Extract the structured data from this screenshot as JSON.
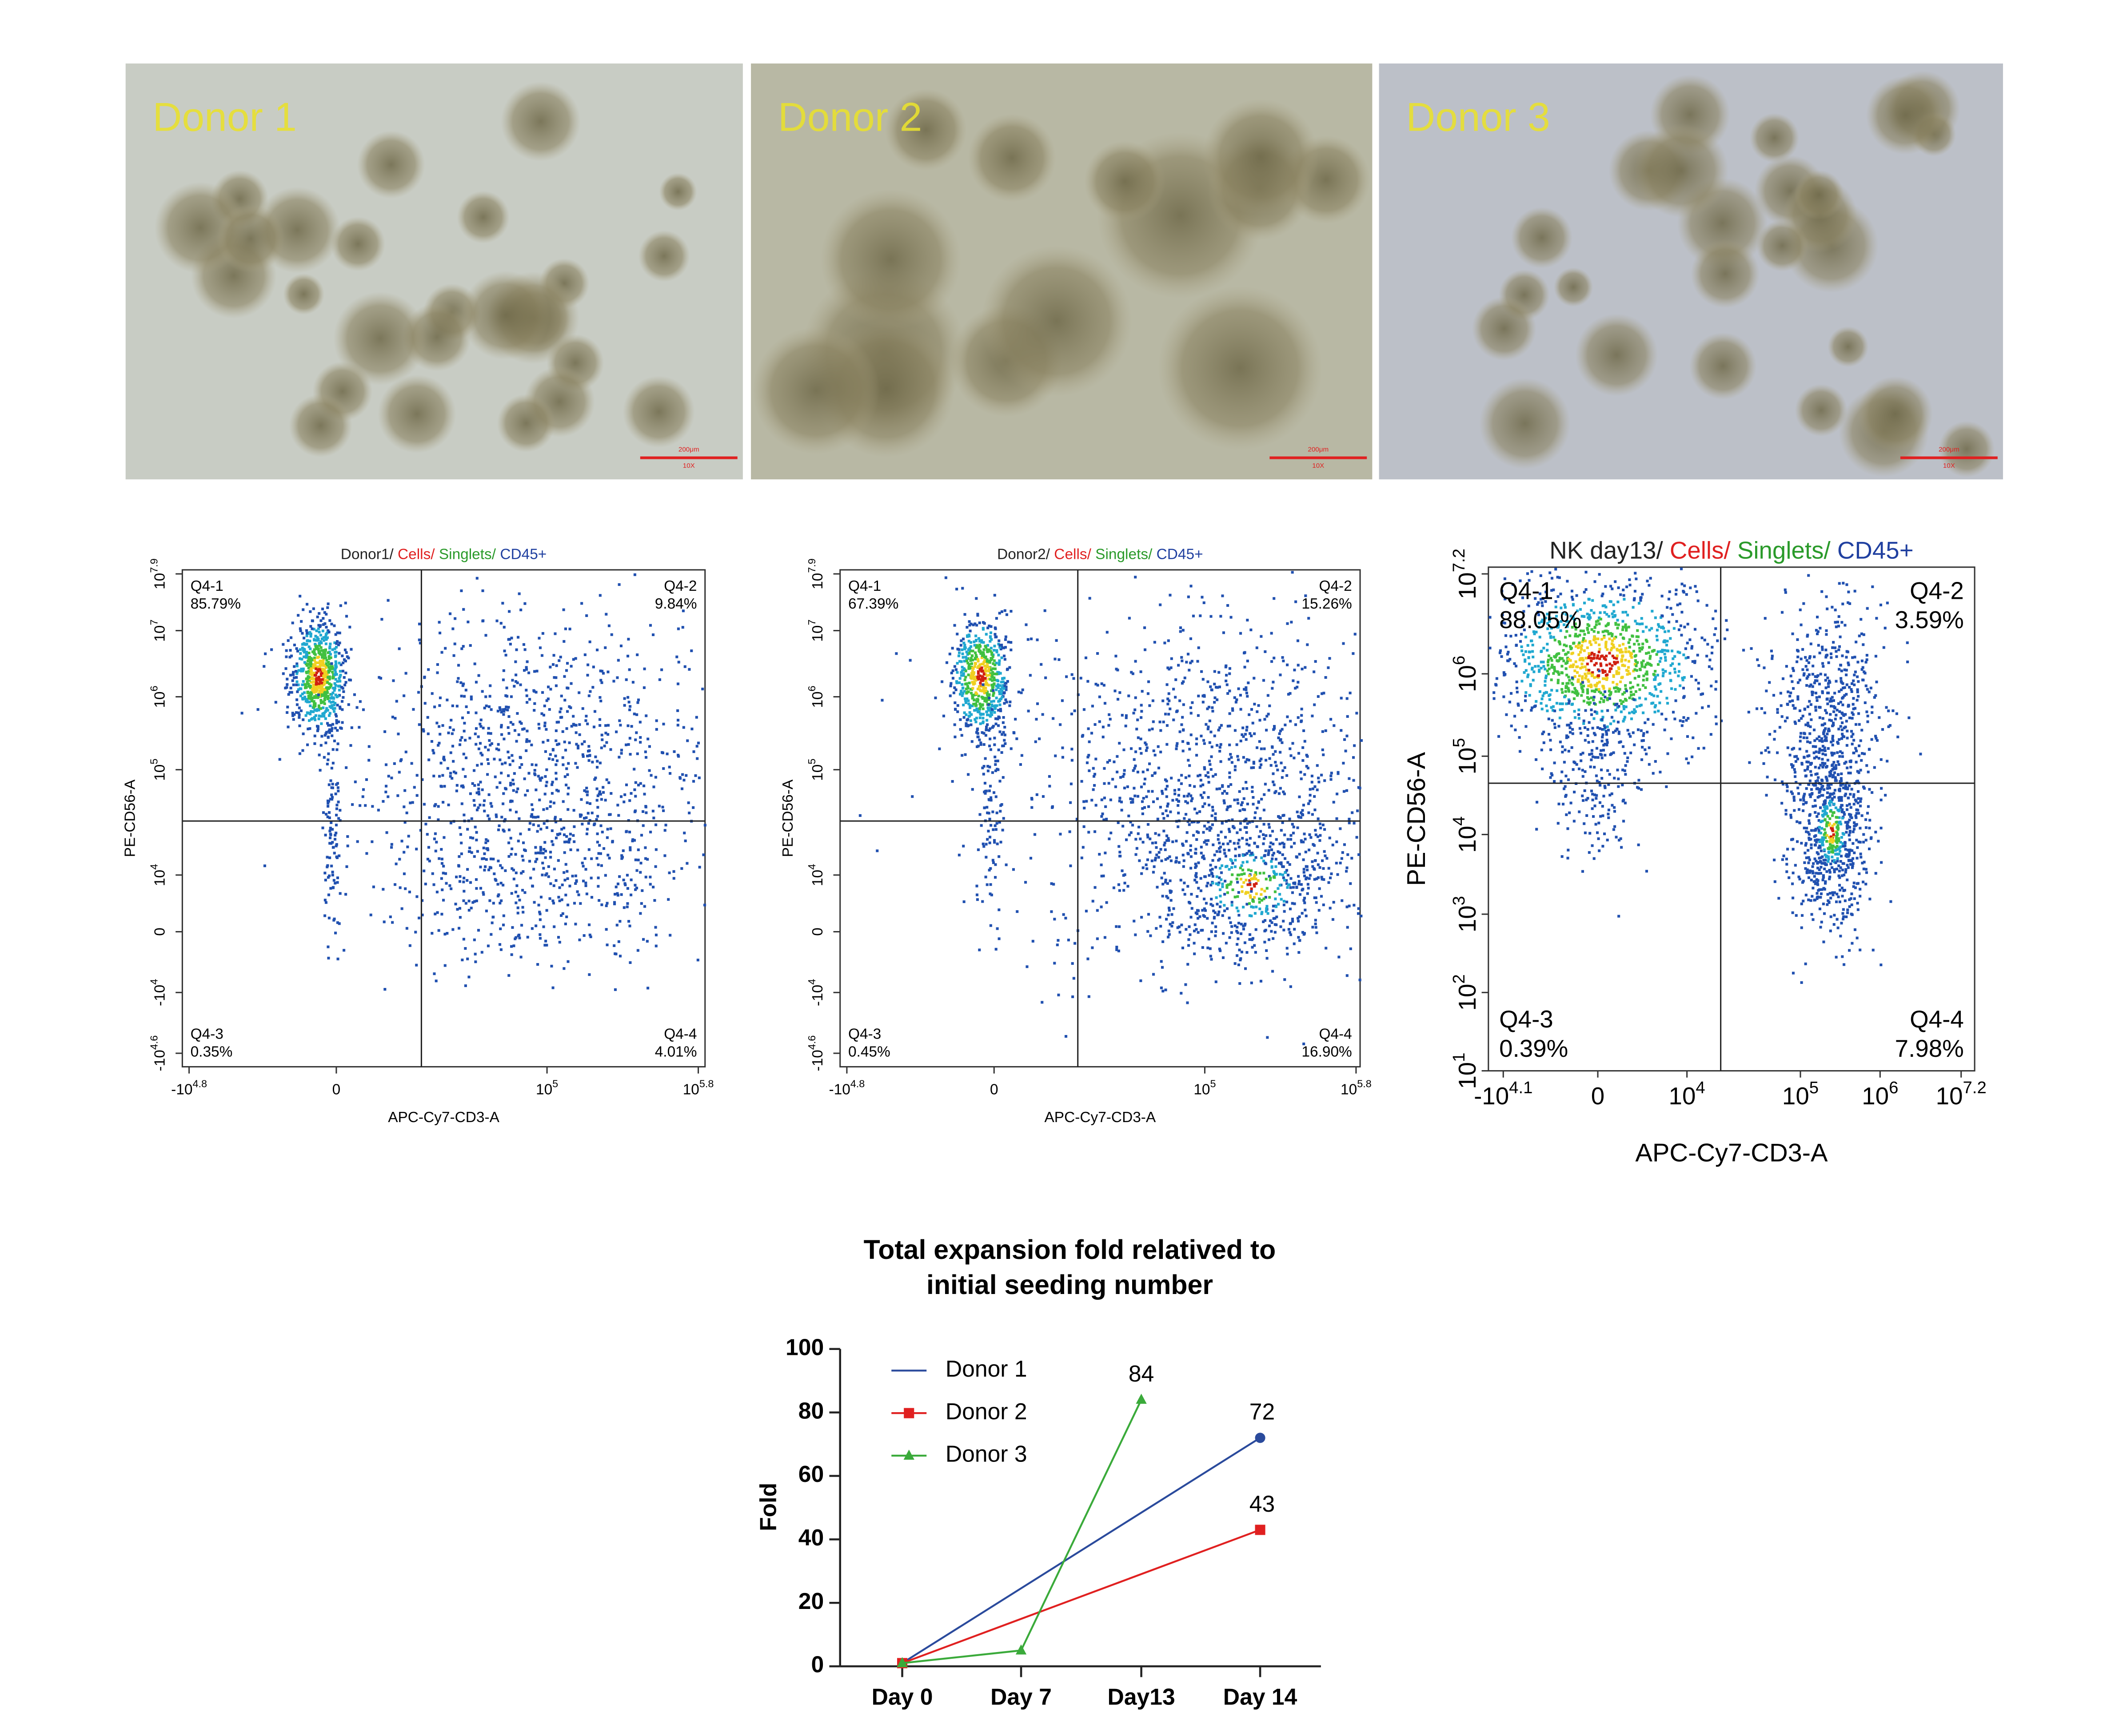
{
  "micrographs": [
    {
      "label": "Donor 1",
      "scale_bar": "200μm",
      "magnification": "10X"
    },
    {
      "label": "Donor 2",
      "scale_bar": "200μm",
      "magnification": "10X"
    },
    {
      "label": "Donor 3",
      "scale_bar": "200μm",
      "magnification": "10X"
    }
  ],
  "chart_data": [
    {
      "type": "flow",
      "title_parts": [
        {
          "text": "Donor1/",
          "color": "#222222"
        },
        {
          "text": " Cells/",
          "color": "#e02020"
        },
        {
          "text": " Singlets/",
          "color": "#2a9a2a"
        },
        {
          "text": " CD45+",
          "color": "#2040a0"
        }
      ],
      "xlabel": "APC-Cy7-CD3-A",
      "ylabel": "PE-CD56-A",
      "xticks": [
        {
          "base": "-10",
          "exp": "4.8"
        },
        {
          "base": "0"
        },
        {
          "base": "10",
          "exp": "5"
        },
        {
          "base": "10",
          "exp": "5.8"
        }
      ],
      "yticks": [
        {
          "base": "-10",
          "exp": "4.6"
        },
        {
          "base": "-10",
          "exp": "4"
        },
        {
          "base": "0"
        },
        {
          "base": "10",
          "exp": "4"
        },
        {
          "base": "10",
          "exp": "5"
        },
        {
          "base": "10",
          "exp": "6"
        },
        {
          "base": "10",
          "exp": "7"
        },
        {
          "base": "10",
          "exp": "7.9"
        }
      ],
      "quadrants": [
        {
          "name": "Q4-1",
          "value": 85.79,
          "value_label": "85.79%"
        },
        {
          "name": "Q4-2",
          "value": 9.84,
          "value_label": "9.84%"
        },
        {
          "name": "Q4-3",
          "value": 0.35,
          "value_label": "0.35%"
        },
        {
          "name": "Q4-4",
          "value": 4.01,
          "value_label": "4.01%"
        }
      ]
    },
    {
      "type": "flow",
      "title_parts": [
        {
          "text": "Donor2/",
          "color": "#222222"
        },
        {
          "text": " Cells/",
          "color": "#e02020"
        },
        {
          "text": " Singlets/",
          "color": "#2a9a2a"
        },
        {
          "text": " CD45+",
          "color": "#2040a0"
        }
      ],
      "xlabel": "APC-Cy7-CD3-A",
      "ylabel": "PE-CD56-A",
      "xticks": [
        {
          "base": "-10",
          "exp": "4.8"
        },
        {
          "base": "0"
        },
        {
          "base": "10",
          "exp": "5"
        },
        {
          "base": "10",
          "exp": "5.8"
        }
      ],
      "yticks": [
        {
          "base": "-10",
          "exp": "4.6"
        },
        {
          "base": "-10",
          "exp": "4"
        },
        {
          "base": "0"
        },
        {
          "base": "10",
          "exp": "4"
        },
        {
          "base": "10",
          "exp": "5"
        },
        {
          "base": "10",
          "exp": "6"
        },
        {
          "base": "10",
          "exp": "7"
        },
        {
          "base": "10",
          "exp": "7.9"
        }
      ],
      "quadrants": [
        {
          "name": "Q4-1",
          "value": 67.39,
          "value_label": "67.39%"
        },
        {
          "name": "Q4-2",
          "value": 15.26,
          "value_label": "15.26%"
        },
        {
          "name": "Q4-3",
          "value": 0.45,
          "value_label": "0.45%"
        },
        {
          "name": "Q4-4",
          "value": 16.9,
          "value_label": "16.90%"
        }
      ]
    },
    {
      "type": "flow",
      "title_parts": [
        {
          "text": "NK day13/",
          "color": "#222222"
        },
        {
          "text": " Cells/",
          "color": "#e02020"
        },
        {
          "text": " Singlets/",
          "color": "#2a9a2a"
        },
        {
          "text": " CD45+",
          "color": "#2040a0"
        }
      ],
      "xlabel": "APC-Cy7-CD3-A",
      "ylabel": "PE-CD56-A",
      "xticks": [
        {
          "base": "-10",
          "exp": "4.1"
        },
        {
          "base": "0"
        },
        {
          "base": "10",
          "exp": "4"
        },
        {
          "base": "10",
          "exp": "5"
        },
        {
          "base": "10",
          "exp": "6"
        },
        {
          "base": "10",
          "exp": "7.2"
        }
      ],
      "yticks": [
        {
          "base": "10",
          "exp": "1"
        },
        {
          "base": "10",
          "exp": "2"
        },
        {
          "base": "10",
          "exp": "3"
        },
        {
          "base": "10",
          "exp": "4"
        },
        {
          "base": "10",
          "exp": "5"
        },
        {
          "base": "10",
          "exp": "6"
        },
        {
          "base": "10",
          "exp": "7.2"
        }
      ],
      "quadrants": [
        {
          "name": "Q4-1",
          "value": 88.05,
          "value_label": "88.05%"
        },
        {
          "name": "Q4-2",
          "value": 3.59,
          "value_label": "3.59%"
        },
        {
          "name": "Q4-3",
          "value": 0.39,
          "value_label": "0.39%"
        },
        {
          "name": "Q4-4",
          "value": 7.98,
          "value_label": "7.98%"
        }
      ]
    },
    {
      "type": "line",
      "title_lines": [
        "Total expansion fold relatived to",
        "initial seeding number"
      ],
      "ylabel": "Fold",
      "categories": [
        "Day 0",
        "Day 7",
        "Day13",
        "Day 14"
      ],
      "ylim": [
        0,
        100
      ],
      "yticks": [
        0,
        20,
        40,
        60,
        80,
        100
      ],
      "series": [
        {
          "name": "Donor 1",
          "color": "#2a4a9c",
          "marker": "circle",
          "values": [
            1,
            null,
            null,
            72
          ],
          "value_labels": [
            null,
            null,
            null,
            "72"
          ]
        },
        {
          "name": "Donor 2",
          "color": "#e02020",
          "marker": "square",
          "values": [
            1,
            null,
            null,
            43
          ],
          "value_labels": [
            null,
            null,
            null,
            "43"
          ]
        },
        {
          "name": "Donor 3",
          "color": "#3aaa3a",
          "marker": "triangle",
          "values": [
            1,
            5,
            84,
            null
          ],
          "value_labels": [
            null,
            null,
            "84",
            null
          ]
        }
      ]
    }
  ]
}
